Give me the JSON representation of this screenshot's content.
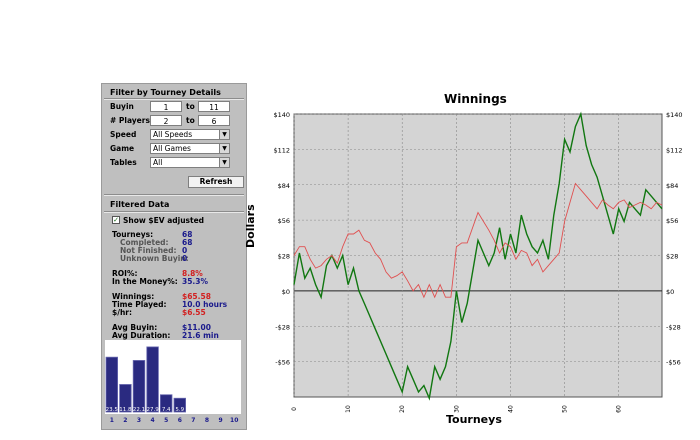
{
  "filter": {
    "title": "Filter by Tourney Details",
    "buyin": {
      "label": "Buyin",
      "from": "1",
      "to_label": "to",
      "to": "11"
    },
    "players": {
      "label": "# Players",
      "from": "2",
      "to_label": "to",
      "to": "6"
    },
    "speed": {
      "label": "Speed",
      "value": "All Speeds"
    },
    "game": {
      "label": "Game",
      "value": "All Games"
    },
    "tables": {
      "label": "Tables",
      "value": "All"
    },
    "refresh_label": "Refresh"
  },
  "filtered": {
    "title": "Filtered Data",
    "show_ev_label": "Show $EV adjusted",
    "show_ev_checked": true,
    "tourneys": {
      "label": "Tourneys:",
      "value": "68"
    },
    "completed": {
      "label": "Completed:",
      "value": "68"
    },
    "not_finished": {
      "label": "Not Finished:",
      "value": "0"
    },
    "unknown_buyin": {
      "label": "Unknown Buyin:",
      "value": "0"
    },
    "roi": {
      "label": "ROI%:",
      "value": "8.8%"
    },
    "itm": {
      "label": "In the Money%:",
      "value": "35.3%"
    },
    "winnings": {
      "label": "Winnings:",
      "value": "$65.58"
    },
    "time_played": {
      "label": "Time Played:",
      "value": "10.0 hours"
    },
    "per_hr": {
      "label": "$/hr:",
      "value": "$6.55"
    },
    "avg_buyin": {
      "label": "Avg Buyin:",
      "value": "$11.00"
    },
    "avg_duration": {
      "label": "Avg Duration:",
      "value": "21.6 min"
    }
  },
  "histogram": {
    "categories": [
      "1",
      "2",
      "3",
      "4",
      "5",
      "6",
      "7",
      "8",
      "9",
      "10"
    ],
    "values": [
      23.5,
      11.8,
      22.1,
      27.9,
      7.4,
      5.9,
      0,
      0,
      0,
      0
    ],
    "labels": [
      "23.5",
      "11.8",
      "22.1",
      "27.9",
      "7.4",
      "5.9",
      "",
      "",
      "",
      ""
    ],
    "max": 30,
    "bar_color": "#2a2a80"
  },
  "chart_data": {
    "type": "line",
    "title": "Winnings",
    "xlabel": "Tourneys",
    "ylabel": "Dollars",
    "xlim": [
      0,
      68
    ],
    "ylim": [
      -84,
      140
    ],
    "x_ticks": [
      0,
      10,
      20,
      30,
      40,
      50,
      60
    ],
    "x_tick_labels": [
      "0",
      "10",
      "20",
      "30",
      "40",
      "50",
      "60"
    ],
    "y_ticks": [
      140,
      112,
      84,
      56,
      28,
      0,
      -28,
      -56
    ],
    "y_tick_labels": [
      "$140",
      "$112",
      "$84",
      "$56",
      "$28",
      "$0",
      "-$28",
      "-$56"
    ],
    "grid": true,
    "series": [
      {
        "color": "#117711",
        "x": [
          0,
          1,
          2,
          3,
          4,
          5,
          6,
          7,
          8,
          9,
          10,
          11,
          12,
          13,
          14,
          15,
          16,
          17,
          18,
          19,
          20,
          21,
          22,
          23,
          24,
          25,
          26,
          27,
          28,
          29,
          30,
          31,
          32,
          33,
          34,
          35,
          36,
          37,
          38,
          39,
          40,
          41,
          42,
          43,
          44,
          45,
          46,
          47,
          48,
          49,
          50,
          51,
          52,
          53,
          54,
          55,
          56,
          57,
          58,
          59,
          60,
          61,
          62,
          63,
          64,
          65,
          66,
          67,
          68
        ],
        "values": [
          5,
          30,
          10,
          18,
          5,
          -5,
          20,
          28,
          18,
          28,
          5,
          18,
          0,
          -10,
          -20,
          -30,
          -40,
          -50,
          -60,
          -70,
          -80,
          -60,
          -70,
          -80,
          -75,
          -85,
          -60,
          -70,
          -60,
          -40,
          0,
          -25,
          -10,
          15,
          40,
          30,
          20,
          30,
          50,
          25,
          45,
          30,
          60,
          45,
          35,
          30,
          40,
          25,
          60,
          85,
          120,
          110,
          130,
          140,
          115,
          100,
          90,
          75,
          60,
          45,
          65,
          55,
          70,
          65,
          60,
          80,
          75,
          70,
          65
        ]
      },
      {
        "color": "#e05050",
        "x": [
          0,
          1,
          2,
          3,
          4,
          5,
          6,
          7,
          8,
          9,
          10,
          11,
          12,
          13,
          14,
          15,
          16,
          17,
          18,
          19,
          20,
          21,
          22,
          23,
          24,
          25,
          26,
          27,
          28,
          29,
          30,
          31,
          32,
          33,
          34,
          35,
          36,
          37,
          38,
          39,
          40,
          41,
          42,
          43,
          44,
          45,
          46,
          47,
          48,
          49,
          50,
          51,
          52,
          53,
          54,
          55,
          56,
          57,
          58,
          59,
          60,
          61,
          62,
          63,
          64,
          65,
          66,
          67,
          68
        ],
        "values": [
          28,
          35,
          35,
          25,
          18,
          20,
          25,
          28,
          22,
          35,
          45,
          45,
          48,
          40,
          38,
          30,
          25,
          15,
          10,
          12,
          15,
          8,
          0,
          5,
          -5,
          5,
          -5,
          5,
          -5,
          -5,
          35,
          38,
          38,
          50,
          62,
          55,
          48,
          40,
          30,
          38,
          35,
          25,
          32,
          30,
          20,
          25,
          15,
          20,
          25,
          30,
          55,
          70,
          85,
          80,
          75,
          70,
          65,
          72,
          68,
          65,
          70,
          72,
          66,
          68,
          70,
          68,
          65,
          70,
          68
        ]
      }
    ]
  }
}
